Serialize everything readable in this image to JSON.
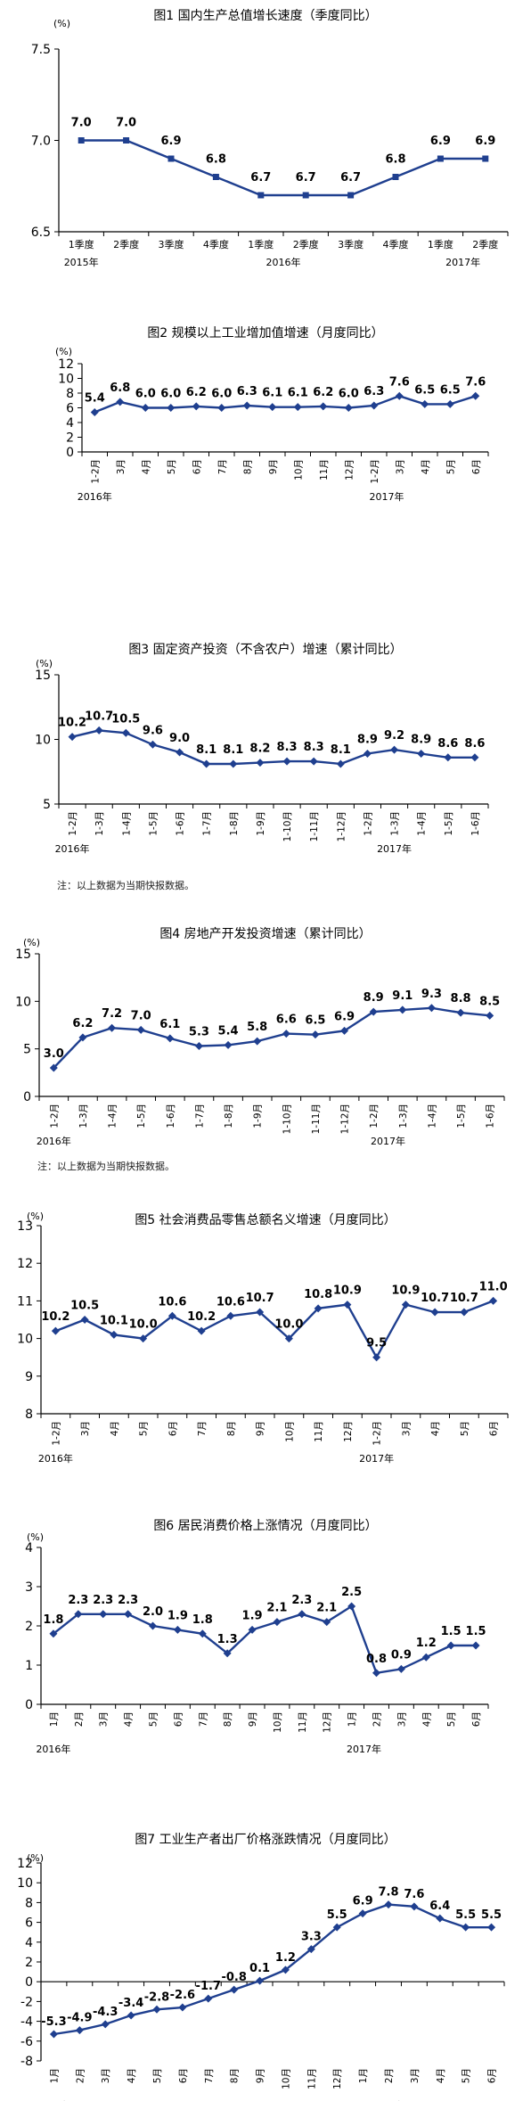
{
  "notes": {
    "fig3": "注：以上数据为当期快报数据。",
    "fig4": "注：以上数据为当期快报数据。"
  },
  "colors": {
    "line": "#1f3f8f",
    "axis": "#000000",
    "text": "#000000"
  },
  "chart_data": [
    {
      "id": "fig1",
      "type": "line",
      "title": "图1   国内生产总值增长速度（季度同比）",
      "unit": "(%)",
      "x": [
        "1季度",
        "2季度",
        "3季度",
        "4季度",
        "1季度",
        "2季度",
        "3季度",
        "4季度",
        "1季度",
        "2季度"
      ],
      "year_labels": [
        {
          "label": "2015年",
          "index": 0
        },
        {
          "label": "2016年",
          "index": 4.5
        },
        {
          "label": "2017年",
          "index": 8.5
        }
      ],
      "values": [
        7.0,
        7.0,
        6.9,
        6.8,
        6.7,
        6.7,
        6.7,
        6.8,
        6.9,
        6.9
      ],
      "labels": [
        "7.0",
        "7.0",
        "6.9",
        "6.8",
        "6.7",
        "6.7",
        "6.7",
        "6.8",
        "6.9",
        "6.9"
      ],
      "ylim": [
        6.5,
        7.5
      ],
      "yticks": [
        "6.5",
        "7.0",
        "7.5"
      ],
      "marker": "square",
      "grid": false
    },
    {
      "id": "fig2",
      "type": "line",
      "title": "图2   规模以上工业增加值增速（月度同比）",
      "unit": "(%)",
      "x": [
        "1-2月",
        "3月",
        "4月",
        "5月",
        "6月",
        "7月",
        "8月",
        "9月",
        "10月",
        "11月",
        "12月",
        "1-2月",
        "3月",
        "4月",
        "5月",
        "6月"
      ],
      "year_labels": [
        {
          "label": "2016年",
          "index": 0
        },
        {
          "label": "2017年",
          "index": 11.5
        }
      ],
      "values": [
        5.4,
        6.8,
        6.0,
        6.0,
        6.2,
        6.0,
        6.3,
        6.1,
        6.1,
        6.2,
        6.0,
        6.3,
        7.6,
        6.5,
        6.5,
        7.6
      ],
      "labels": [
        "5.4",
        "6.8",
        "6.0",
        "6.0",
        "6.2",
        "6.0",
        "6.3",
        "6.1",
        "6.1",
        "6.2",
        "6.0",
        "6.3",
        "7.6",
        "6.5",
        "6.5",
        "7.6"
      ],
      "ylim": [
        0,
        12
      ],
      "yticks": [
        "0",
        "2",
        "4",
        "6",
        "8",
        "10",
        "12"
      ],
      "marker": "diamond",
      "grid": false
    },
    {
      "id": "fig3",
      "type": "line",
      "title": "图3   固定资产投资（不含农户）增速（累计同比）",
      "unit": "(%)",
      "x": [
        "1-2月",
        "1-3月",
        "1-4月",
        "1-5月",
        "1-6月",
        "1-7月",
        "1-8月",
        "1-9月",
        "1-10月",
        "1-11月",
        "1-12月",
        "1-2月",
        "1-3月",
        "1-4月",
        "1-5月",
        "1-6月"
      ],
      "year_labels": [
        {
          "label": "2016年",
          "index": 0
        },
        {
          "label": "2017年",
          "index": 12
        }
      ],
      "values": [
        10.2,
        10.7,
        10.5,
        9.6,
        9.0,
        8.1,
        8.1,
        8.2,
        8.3,
        8.3,
        8.1,
        8.9,
        9.2,
        8.9,
        8.6,
        8.6
      ],
      "labels": [
        "10.2",
        "10.7",
        "10.5",
        "9.6",
        "9.0",
        "8.1",
        "8.1",
        "8.2",
        "8.3",
        "8.3",
        "8.1",
        "8.9",
        "9.2",
        "8.9",
        "8.6",
        "8.6"
      ],
      "ylim": [
        5,
        15
      ],
      "yticks": [
        "5",
        "10",
        "15"
      ],
      "marker": "diamond",
      "grid": false
    },
    {
      "id": "fig4",
      "type": "line",
      "title": "图4   房地产开发投资增速（累计同比）",
      "unit": "(%)",
      "x": [
        "1-2月",
        "1-3月",
        "1-4月",
        "1-5月",
        "1-6月",
        "1-7月",
        "1-8月",
        "1-9月",
        "1-10月",
        "1-11月",
        "1-12月",
        "1-2月",
        "1-3月",
        "1-4月",
        "1-5月",
        "1-6月"
      ],
      "year_labels": [
        {
          "label": "2016年",
          "index": 0
        },
        {
          "label": "2017年",
          "index": 11.5
        }
      ],
      "values": [
        3.0,
        6.2,
        7.2,
        7.0,
        6.1,
        5.3,
        5.4,
        5.8,
        6.6,
        6.5,
        6.9,
        8.9,
        9.1,
        9.3,
        8.8,
        8.5
      ],
      "labels": [
        "3.0",
        "6.2",
        "7.2",
        "7.0",
        "6.1",
        "5.3",
        "5.4",
        "5.8",
        "6.6",
        "6.5",
        "6.9",
        "8.9",
        "9.1",
        "9.3",
        "8.8",
        "8.5"
      ],
      "ylim": [
        0,
        15
      ],
      "yticks": [
        "0",
        "5",
        "10",
        "15"
      ],
      "marker": "diamond",
      "grid": false
    },
    {
      "id": "fig5",
      "type": "line",
      "title": "图5  社会消费品零售总额名义增速（月度同比）",
      "unit": "(%)",
      "x": [
        "1-2月",
        "3月",
        "4月",
        "5月",
        "6月",
        "7月",
        "8月",
        "9月",
        "10月",
        "11月",
        "12月",
        "1-2月",
        "3月",
        "4月",
        "5月",
        "6月"
      ],
      "year_labels": [
        {
          "label": "2016年",
          "index": 0
        },
        {
          "label": "2017年",
          "index": 11
        }
      ],
      "values": [
        10.2,
        10.5,
        10.1,
        10.0,
        10.6,
        10.2,
        10.6,
        10.7,
        10.0,
        10.8,
        10.9,
        9.5,
        10.9,
        10.7,
        10.7,
        11.0
      ],
      "labels": [
        "10.2",
        "10.5",
        "10.1",
        "10.0",
        "10.6",
        "10.2",
        "10.6",
        "10.7",
        "10.0",
        "10.8",
        "10.9",
        "9.5",
        "10.9",
        "10.7",
        "10.7",
        "11.0"
      ],
      "ylim": [
        8,
        13
      ],
      "yticks": [
        "8",
        "9",
        "10",
        "11",
        "12",
        "13"
      ],
      "marker": "diamond",
      "grid": false
    },
    {
      "id": "fig6",
      "type": "line",
      "title": "图6   居民消费价格上涨情况（月度同比）",
      "unit": "(%)",
      "x": [
        "1月",
        "2月",
        "3月",
        "4月",
        "5月",
        "6月",
        "7月",
        "8月",
        "9月",
        "10月",
        "11月",
        "12月",
        "1月",
        "2月",
        "3月",
        "4月",
        "5月",
        "6月"
      ],
      "year_labels": [
        {
          "label": "2016年",
          "index": 0
        },
        {
          "label": "2017年",
          "index": 12.5
        }
      ],
      "values": [
        1.8,
        2.3,
        2.3,
        2.3,
        2.0,
        1.9,
        1.8,
        1.3,
        1.9,
        2.1,
        2.3,
        2.1,
        2.5,
        0.8,
        0.9,
        1.2,
        1.5,
        1.5
      ],
      "labels": [
        "1.8",
        "2.3",
        "2.3",
        "2.3",
        "2.0",
        "1.9",
        "1.8",
        "1.3",
        "1.9",
        "2.1",
        "2.3",
        "2.1",
        "2.5",
        "0.8",
        "0.9",
        "1.2",
        "1.5",
        "1.5"
      ],
      "ylim": [
        0,
        4
      ],
      "yticks": [
        "0",
        "1",
        "2",
        "3",
        "4"
      ],
      "marker": "diamond",
      "grid": false
    },
    {
      "id": "fig7",
      "type": "line",
      "title": "图7 工业生产者出厂价格涨跌情况（月度同比）",
      "unit": "(%)",
      "x": [
        "1月",
        "2月",
        "3月",
        "4月",
        "5月",
        "6月",
        "7月",
        "8月",
        "9月",
        "10月",
        "11月",
        "12月",
        "1月",
        "2月",
        "3月",
        "4月",
        "5月",
        "6月"
      ],
      "year_labels": [
        {
          "label": "2016年",
          "index": 0
        },
        {
          "label": "2017年",
          "index": 13
        }
      ],
      "values": [
        -5.3,
        -4.9,
        -4.3,
        -3.4,
        -2.8,
        -2.6,
        -1.7,
        -0.8,
        0.1,
        1.2,
        3.3,
        5.5,
        6.9,
        7.8,
        7.6,
        6.4,
        5.5,
        5.5
      ],
      "labels": [
        "-5.3",
        "-4.9",
        "-4.3",
        "-3.4",
        "-2.8",
        "-2.6",
        "-1.7",
        "-0.8",
        "0.1",
        "1.2",
        "3.3",
        "5.5",
        "6.9",
        "7.8",
        "7.6",
        "6.4",
        "5.5",
        "5.5"
      ],
      "ylim": [
        -8,
        12
      ],
      "yticks": [
        "-8",
        "-6",
        "-4",
        "-2",
        "0",
        "2",
        "4",
        "6",
        "8",
        "10",
        "12"
      ],
      "marker": "diamond",
      "grid": false
    }
  ]
}
